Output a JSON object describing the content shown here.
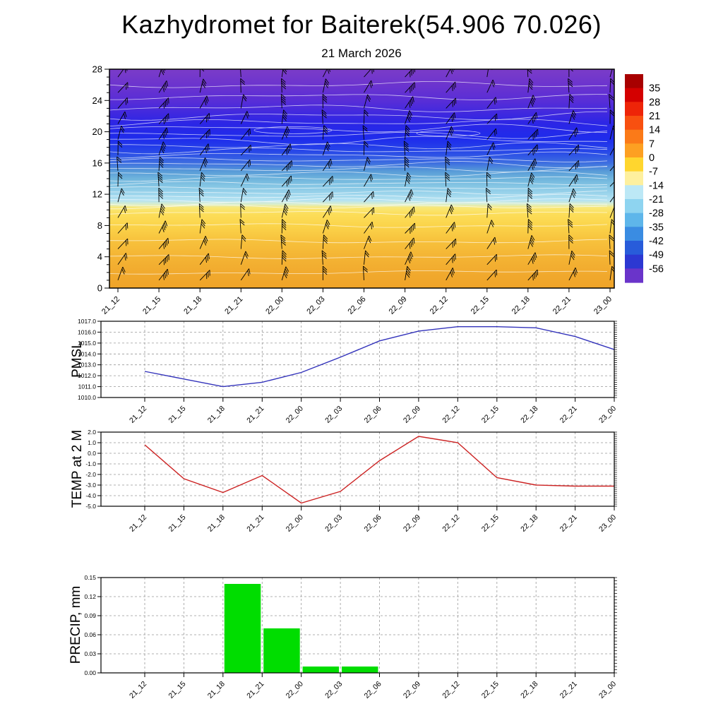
{
  "header": {
    "title": "Kazhydromet for Baiterek(54.906 70.026)",
    "subtitle": "21 March 2026"
  },
  "time_labels": [
    "21_12",
    "21_15",
    "21_18",
    "21_21",
    "22_00",
    "22_03",
    "22_06",
    "22_09",
    "22_12",
    "22_15",
    "22_18",
    "22_21",
    "23_00"
  ],
  "chart_data": [
    {
      "type": "heatmap",
      "name": "upper-air-cross-section",
      "description": "Time-height temperature shading with wind barbs",
      "x": [
        "21_12",
        "21_15",
        "21_18",
        "21_21",
        "22_00",
        "22_03",
        "22_06",
        "22_09",
        "22_12",
        "22_15",
        "22_18",
        "22_21",
        "23_00"
      ],
      "ylim": [
        0,
        28
      ],
      "y_ticks": [
        0,
        4,
        8,
        12,
        16,
        20,
        24,
        28
      ],
      "colorbar_labels": [
        "35",
        "28",
        "21",
        "14",
        "7",
        "0",
        "-7",
        "-14",
        "-21",
        "-28",
        "-35",
        "-42",
        "-49",
        "-56"
      ],
      "colorbar_colors": [
        "#A80000",
        "#D40000",
        "#EE2408",
        "#F85010",
        "#FB7A18",
        "#FDA022",
        "#FFD62E",
        "#FEF09E",
        "#BCE8F6",
        "#8ED4F0",
        "#5EB6EA",
        "#3A8CE2",
        "#285CDA",
        "#2C38D2",
        "#6A34CA"
      ],
      "fill_stops": [
        {
          "at": 0.0,
          "color": "#7B3CC8"
        },
        {
          "at": 0.07,
          "color": "#6C34CE"
        },
        {
          "at": 0.14,
          "color": "#5A2ED6"
        },
        {
          "at": 0.21,
          "color": "#3C28E0"
        },
        {
          "at": 0.25,
          "color": "#2B26E6"
        },
        {
          "at": 0.32,
          "color": "#1E2CEC"
        },
        {
          "at": 0.375,
          "color": "#2747E8"
        },
        {
          "at": 0.43,
          "color": "#3E6FE0"
        },
        {
          "at": 0.465,
          "color": "#579AD8"
        },
        {
          "at": 0.5,
          "color": "#6FB4DC"
        },
        {
          "at": 0.535,
          "color": "#86C6E4"
        },
        {
          "at": 0.57,
          "color": "#9DD5EC"
        },
        {
          "at": 0.6,
          "color": "#B6E3F2"
        },
        {
          "at": 0.618,
          "color": "#DDEEC8"
        },
        {
          "at": 0.632,
          "color": "#F8E878"
        },
        {
          "at": 0.66,
          "color": "#FCDE5A"
        },
        {
          "at": 0.715,
          "color": "#FBD44A"
        },
        {
          "at": 0.786,
          "color": "#F7C13C"
        },
        {
          "at": 0.857,
          "color": "#F4B434"
        },
        {
          "at": 0.93,
          "color": "#F1AA2E"
        },
        {
          "at": 1.0,
          "color": "#EFA328"
        }
      ],
      "grid": false,
      "legend": "colorbar-right"
    },
    {
      "type": "line",
      "ylabel": "PMSL",
      "x": [
        "21_12",
        "21_15",
        "21_18",
        "21_21",
        "22_00",
        "22_03",
        "22_06",
        "22_09",
        "22_12",
        "22_15",
        "22_18",
        "22_21",
        "23_00"
      ],
      "series": [
        {
          "name": "PMSL",
          "color": "#3333bb",
          "values": [
            1012.4,
            1011.7,
            1011.0,
            1011.4,
            1012.3,
            1013.7,
            1015.2,
            1016.1,
            1016.5,
            1016.5,
            1016.4,
            1015.6,
            1014.4
          ]
        }
      ],
      "ylim": [
        1010,
        1017
      ],
      "y_ticks": [
        "1010.0",
        "1011.0",
        "1012.0",
        "1013.0",
        "1014.0",
        "1015.0",
        "1016.0",
        "1017.0"
      ],
      "grid": true,
      "grid_style": "dashed"
    },
    {
      "type": "line",
      "ylabel": "TEMP at 2 M",
      "x": [
        "21_12",
        "21_15",
        "21_18",
        "21_21",
        "22_00",
        "22_03",
        "22_06",
        "22_09",
        "22_12",
        "22_15",
        "22_18",
        "22_21",
        "23_00"
      ],
      "series": [
        {
          "name": "TEMP at 2 M",
          "color": "#cc2222",
          "values": [
            0.8,
            -2.4,
            -3.7,
            -2.1,
            -4.7,
            -3.6,
            -0.7,
            1.6,
            1.0,
            -2.3,
            -3.0,
            -3.1,
            -3.1
          ]
        }
      ],
      "ylim": [
        -5,
        2
      ],
      "y_ticks": [
        "-5.0",
        "-4.0",
        "-3.0",
        "-2.0",
        "-1.0",
        "0.0",
        "1.0",
        "2.0"
      ],
      "grid": true,
      "grid_style": "dashed"
    },
    {
      "type": "bar",
      "ylabel": "PRECIP, mm",
      "x": [
        "21_12",
        "21_15",
        "21_18",
        "21_21",
        "22_00",
        "22_03",
        "22_06",
        "22_09",
        "22_12",
        "22_15",
        "22_18",
        "22_21",
        "23_00"
      ],
      "values": [
        0,
        0,
        0,
        0.14,
        0.07,
        0.01,
        0.01,
        0,
        0,
        0,
        0,
        0,
        0
      ],
      "bar_color": "#00DD00",
      "ylim": [
        0,
        0.15
      ],
      "y_ticks": [
        "0.00",
        "0.03",
        "0.06",
        "0.09",
        "0.12",
        "0.15"
      ],
      "grid": true,
      "grid_style": "dashed"
    }
  ]
}
